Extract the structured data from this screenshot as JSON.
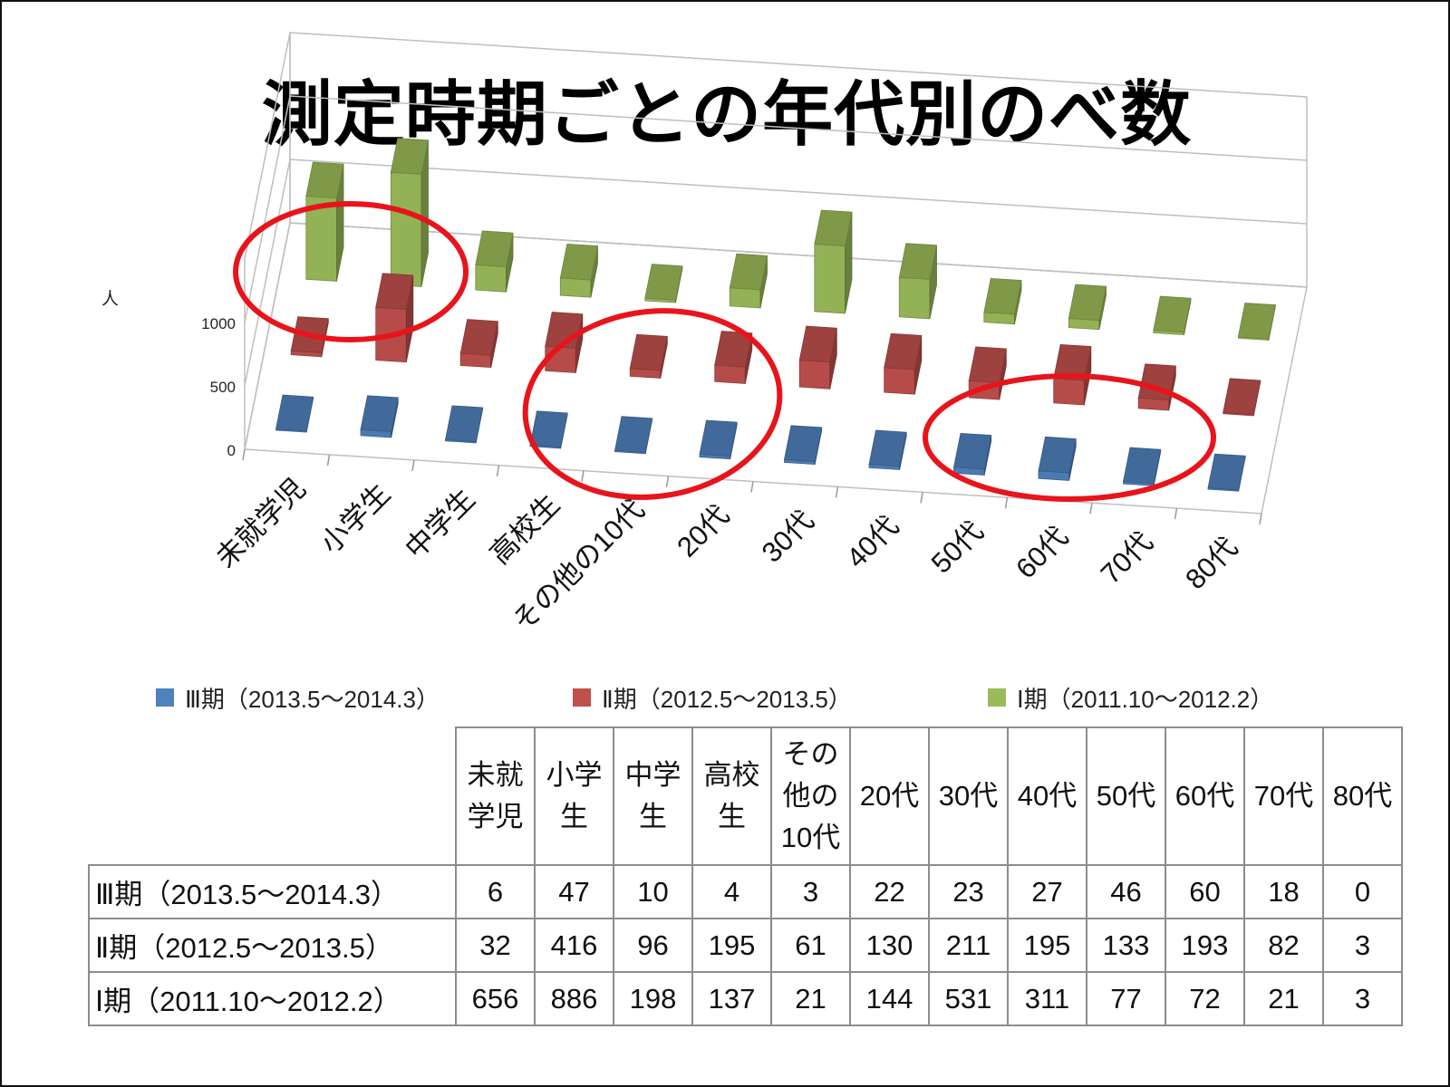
{
  "page": {
    "title": "測定時期ごとの年代別のべ数"
  },
  "chart_data": {
    "type": "bar",
    "subtype": "3d-column",
    "unit_label": "人",
    "categories": [
      "未就学児",
      "小学生",
      "中学生",
      "高校生",
      "その他の10代",
      "20代",
      "30代",
      "40代",
      "50代",
      "60代",
      "70代",
      "80代"
    ],
    "series": [
      {
        "name": "Ⅲ期（2013.5～2014.3）",
        "color": "#4f81bd",
        "values": [
          6,
          47,
          10,
          4,
          3,
          22,
          23,
          27,
          46,
          60,
          18,
          0
        ]
      },
      {
        "name": "Ⅱ期（2012.5～2013.5）",
        "color": "#c0504d",
        "values": [
          32,
          416,
          96,
          195,
          61,
          130,
          211,
          195,
          133,
          193,
          82,
          3
        ]
      },
      {
        "name": "Ⅰ期（2011.10～2012.2）",
        "color": "#9bbb59",
        "values": [
          656,
          886,
          198,
          137,
          21,
          144,
          531,
          311,
          77,
          72,
          21,
          3
        ]
      }
    ],
    "y_ticks": [
      0,
      500,
      1000
    ],
    "ylim": [
      0,
      1500
    ],
    "legend_position": "bottom",
    "annotations": [
      "red-ellipse-preschool-elementary",
      "red-ellipse-teens-20s",
      "red-ellipse-50s-70s"
    ]
  },
  "table": {
    "headers": [
      "未就\n学児",
      "小学\n生",
      "中学\n生",
      "高校\n生",
      "その\n他の\n10代",
      "20代",
      "30代",
      "40代",
      "50代",
      "60代",
      "70代",
      "80代"
    ],
    "rows": [
      {
        "label": "Ⅲ期（2013.5～2014.3）",
        "cells": [
          "6",
          "47",
          "10",
          "4",
          "3",
          "22",
          "23",
          "27",
          "46",
          "60",
          "18",
          "0"
        ]
      },
      {
        "label": "Ⅱ期（2012.5～2013.5）",
        "cells": [
          "32",
          "416",
          "96",
          "195",
          "61",
          "130",
          "211",
          "195",
          "133",
          "193",
          "82",
          "3"
        ]
      },
      {
        "label": "Ⅰ期（2011.10～2012.2）",
        "cells": [
          "656",
          "886",
          "198",
          "137",
          "21",
          "144",
          "531",
          "311",
          "77",
          "72",
          "21",
          "3"
        ]
      }
    ]
  }
}
